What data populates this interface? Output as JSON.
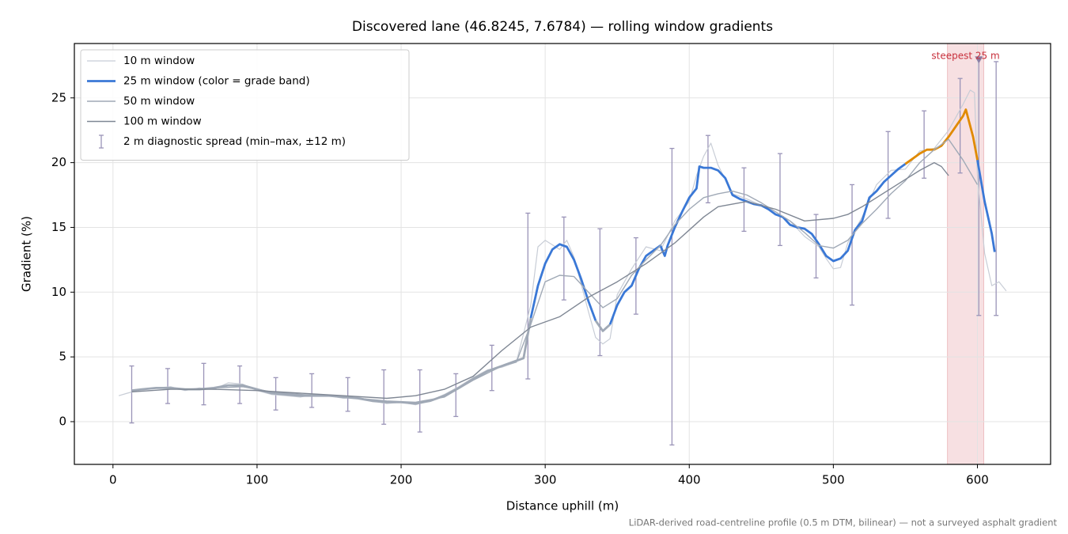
{
  "chart_data": {
    "type": "line",
    "title": "Discovered lane (46.8245, 7.6784) — rolling window gradients",
    "x_label": "Distance uphill (m)",
    "y_label": "Gradient (%)",
    "footnote": "LiDAR-derived road-centreline profile (0.5 m DTM, bilinear) — not a surveyed asphalt gradient",
    "xlim": [
      -26.8,
      650.8
    ],
    "ylim": [
      -3.3,
      29.2
    ],
    "xticks": [
      0,
      100,
      200,
      300,
      400,
      500,
      600
    ],
    "yticks": [
      0,
      5,
      10,
      15,
      20,
      25
    ],
    "grid": true,
    "legend": "upper left",
    "series": [
      {
        "name": "10 m window",
        "color": "#c8cdd6",
        "width": 1.2,
        "x": [
          4,
          10,
          20,
          30,
          40,
          50,
          60,
          70,
          80,
          90,
          100,
          110,
          120,
          130,
          140,
          150,
          160,
          170,
          180,
          190,
          200,
          210,
          220,
          230,
          240,
          250,
          260,
          270,
          280,
          290,
          295,
          300,
          310,
          315,
          320,
          330,
          335,
          340,
          345,
          350,
          360,
          370,
          380,
          390,
          400,
          405,
          410,
          415,
          420,
          430,
          440,
          450,
          460,
          470,
          480,
          490,
          495,
          500,
          505,
          510,
          520,
          530,
          540,
          550,
          560,
          570,
          580,
          590,
          595,
          598,
          600,
          605,
          610,
          615,
          620
        ],
        "values": [
          2.0,
          2.2,
          2.5,
          2.6,
          2.7,
          2.4,
          2.6,
          2.5,
          3.0,
          2.9,
          2.4,
          2.1,
          2.0,
          1.9,
          2.1,
          2.0,
          1.8,
          1.9,
          1.6,
          1.4,
          1.5,
          1.3,
          1.6,
          2.1,
          2.7,
          3.4,
          4.0,
          4.2,
          4.6,
          9.0,
          13.5,
          14.0,
          13.3,
          14.0,
          12.7,
          8.5,
          6.5,
          6.0,
          6.4,
          9.8,
          11.8,
          13.5,
          13.2,
          15.5,
          17.0,
          19.0,
          20.5,
          21.5,
          19.8,
          17.6,
          17.2,
          16.7,
          16.0,
          15.5,
          14.3,
          13.5,
          12.6,
          11.8,
          11.9,
          13.8,
          15.8,
          18.3,
          19.4,
          19.5,
          20.9,
          21.1,
          22.5,
          24.5,
          25.6,
          25.4,
          19.0,
          13.0,
          10.5,
          10.8,
          10.1
        ]
      },
      {
        "name": "25 m window (color = grade band)",
        "color": "#3a78d6",
        "width": 2.8,
        "band_edges": [
          8,
          20
        ],
        "band_colors": [
          "#a0a9b6",
          "#3a78d6",
          "#e08a00"
        ],
        "x": [
          13,
          20,
          30,
          40,
          50,
          60,
          70,
          80,
          90,
          100,
          110,
          120,
          130,
          140,
          150,
          160,
          170,
          180,
          190,
          200,
          210,
          220,
          230,
          240,
          250,
          260,
          270,
          280,
          285,
          290,
          295,
          300,
          305,
          310,
          315,
          320,
          325,
          330,
          335,
          340,
          345,
          350,
          355,
          360,
          365,
          370,
          375,
          380,
          383,
          385,
          390,
          395,
          400,
          405,
          407,
          410,
          415,
          420,
          425,
          430,
          435,
          440,
          445,
          450,
          455,
          460,
          465,
          470,
          475,
          480,
          485,
          490,
          495,
          500,
          505,
          510,
          515,
          520,
          525,
          530,
          535,
          540,
          545,
          550,
          555,
          560,
          565,
          570,
          575,
          580,
          585,
          590,
          592,
          597,
          600,
          605,
          610,
          612
        ],
        "values": [
          2.4,
          2.5,
          2.6,
          2.6,
          2.5,
          2.5,
          2.6,
          2.8,
          2.8,
          2.5,
          2.2,
          2.1,
          2.0,
          2.0,
          2.0,
          1.9,
          1.8,
          1.6,
          1.5,
          1.5,
          1.4,
          1.6,
          2.0,
          2.6,
          3.3,
          3.9,
          4.3,
          4.7,
          4.9,
          8.0,
          10.5,
          12.2,
          13.3,
          13.7,
          13.5,
          12.5,
          11.0,
          9.3,
          7.8,
          7.0,
          7.5,
          9.0,
          10.0,
          10.5,
          11.8,
          12.8,
          13.2,
          13.6,
          12.8,
          13.6,
          15.0,
          16.2,
          17.3,
          18.0,
          19.7,
          19.6,
          19.6,
          19.4,
          18.8,
          17.5,
          17.2,
          17.0,
          16.8,
          16.7,
          16.4,
          16.0,
          15.8,
          15.2,
          15.0,
          14.9,
          14.5,
          13.7,
          12.8,
          12.4,
          12.6,
          13.2,
          14.8,
          15.5,
          17.3,
          17.8,
          18.5,
          19.0,
          19.5,
          19.9,
          20.3,
          20.7,
          21.0,
          21.0,
          21.3,
          22.0,
          22.8,
          23.6,
          24.1,
          22.0,
          20.2,
          17.0,
          14.5,
          13.1
        ]
      },
      {
        "name": "50 m window",
        "color": "#a0a9b6",
        "width": 1.4,
        "x": [
          13,
          30,
          50,
          70,
          90,
          110,
          130,
          150,
          170,
          190,
          210,
          230,
          250,
          270,
          280,
          290,
          300,
          310,
          320,
          330,
          340,
          350,
          360,
          370,
          380,
          390,
          400,
          410,
          420,
          430,
          440,
          450,
          460,
          470,
          480,
          490,
          500,
          510,
          520,
          530,
          540,
          550,
          560,
          570,
          580,
          590,
          600
        ],
        "values": [
          2.4,
          2.6,
          2.5,
          2.6,
          2.7,
          2.3,
          2.1,
          2.0,
          1.8,
          1.6,
          1.5,
          1.9,
          3.2,
          4.3,
          4.6,
          7.5,
          10.8,
          11.3,
          11.2,
          10.0,
          8.8,
          9.5,
          11.3,
          12.5,
          13.6,
          15.2,
          16.4,
          17.3,
          17.6,
          17.8,
          17.5,
          16.9,
          16.2,
          15.5,
          14.6,
          13.6,
          13.4,
          14.0,
          15.3,
          16.4,
          17.6,
          18.6,
          20.0,
          21.0,
          21.8,
          20.2,
          18.3
        ]
      },
      {
        "name": "100 m window",
        "color": "#7f8794",
        "width": 1.4,
        "x": [
          13,
          40,
          70,
          100,
          130,
          160,
          190,
          210,
          230,
          250,
          270,
          290,
          310,
          330,
          350,
          370,
          390,
          400,
          410,
          420,
          440,
          460,
          480,
          500,
          510,
          520,
          540,
          560,
          570,
          575,
          580
        ],
        "values": [
          2.3,
          2.5,
          2.5,
          2.4,
          2.2,
          2.0,
          1.8,
          2.0,
          2.5,
          3.5,
          5.5,
          7.3,
          8.1,
          9.6,
          10.8,
          12.2,
          13.8,
          14.8,
          15.8,
          16.6,
          17.0,
          16.4,
          15.5,
          15.7,
          16.0,
          16.6,
          18.0,
          19.4,
          20.0,
          19.7,
          19.0
        ]
      }
    ],
    "spread": {
      "name": "2 m diagnostic spread (min–max, ±12 m)",
      "color": "#9a94b8",
      "x": [
        13,
        38,
        63,
        88,
        113,
        138,
        163,
        188,
        213,
        238,
        263,
        288,
        313,
        338,
        363,
        388,
        413,
        438,
        463,
        488,
        513,
        538,
        563,
        588,
        601,
        613
      ],
      "low": [
        -0.1,
        1.4,
        1.3,
        1.4,
        0.9,
        1.1,
        0.8,
        -0.2,
        -0.8,
        0.4,
        2.4,
        3.3,
        9.4,
        5.1,
        8.3,
        -1.8,
        16.9,
        14.7,
        13.6,
        11.1,
        9.0,
        15.7,
        18.8,
        19.2,
        8.2,
        8.2
      ],
      "high": [
        4.3,
        4.1,
        4.5,
        4.3,
        3.4,
        3.7,
        3.4,
        4.0,
        4.0,
        3.7,
        5.9,
        16.1,
        15.8,
        14.9,
        14.2,
        21.1,
        22.1,
        19.6,
        20.7,
        16.0,
        18.3,
        22.4,
        24.0,
        26.5,
        28.0,
        27.8
      ]
    },
    "annotation": {
      "text": "steepest 25 m",
      "span": [
        579.2,
        604.4
      ],
      "color": "#c8303c",
      "marker_x": 601,
      "marker_y": 27.9
    }
  }
}
